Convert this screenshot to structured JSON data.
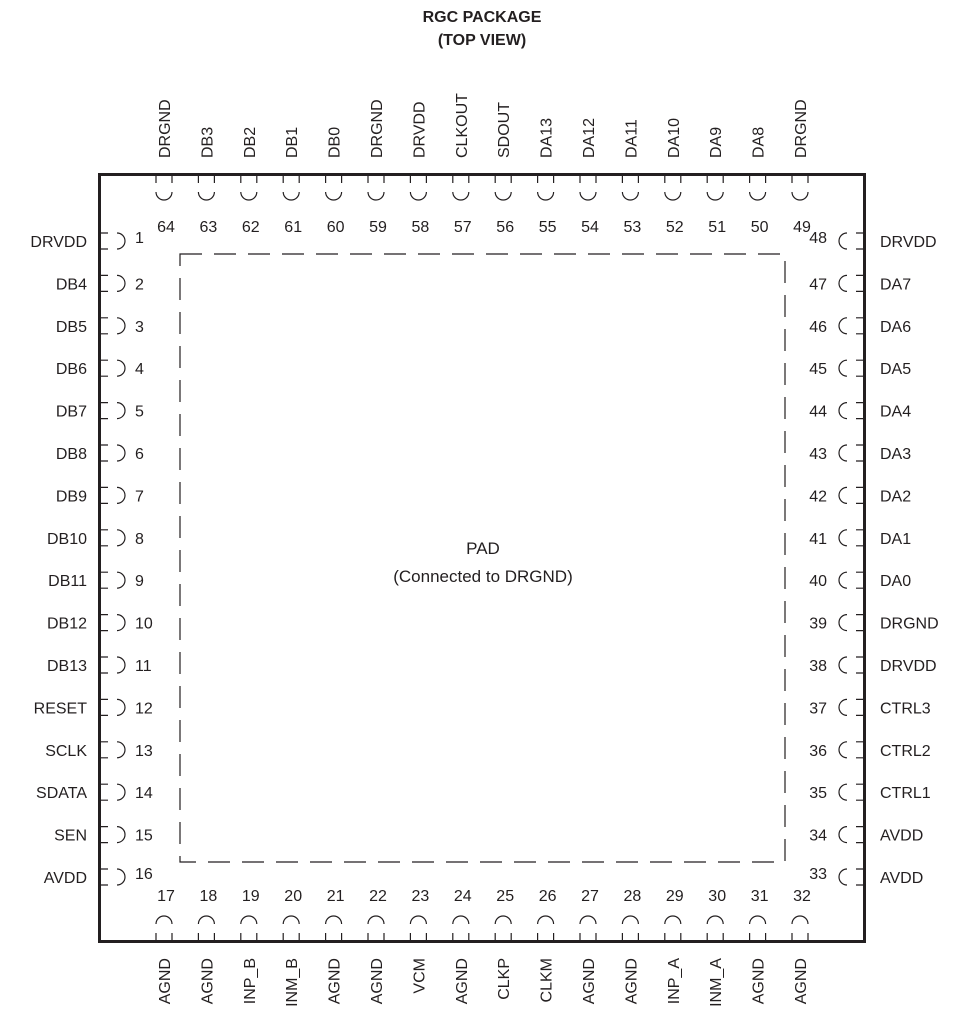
{
  "title": {
    "line1": "RGC PACKAGE",
    "line2": "(TOP VIEW)"
  },
  "pad": {
    "label": "PAD",
    "sublabel": "(Connected to DRGND)"
  },
  "pins": {
    "left": [
      {
        "num": "1",
        "name": "DRVDD"
      },
      {
        "num": "2",
        "name": "DB4"
      },
      {
        "num": "3",
        "name": "DB5"
      },
      {
        "num": "4",
        "name": "DB6"
      },
      {
        "num": "5",
        "name": "DB7"
      },
      {
        "num": "6",
        "name": "DB8"
      },
      {
        "num": "7",
        "name": "DB9"
      },
      {
        "num": "8",
        "name": "DB10"
      },
      {
        "num": "9",
        "name": "DB11"
      },
      {
        "num": "10",
        "name": "DB12"
      },
      {
        "num": "11",
        "name": "DB13"
      },
      {
        "num": "12",
        "name": "RESET"
      },
      {
        "num": "13",
        "name": "SCLK"
      },
      {
        "num": "14",
        "name": "SDATA"
      },
      {
        "num": "15",
        "name": "SEN"
      },
      {
        "num": "16",
        "name": "AVDD"
      }
    ],
    "bottom": [
      {
        "num": "17",
        "name": "AGND"
      },
      {
        "num": "18",
        "name": "AGND"
      },
      {
        "num": "19",
        "name": "INP_B"
      },
      {
        "num": "20",
        "name": "INM_B"
      },
      {
        "num": "21",
        "name": "AGND"
      },
      {
        "num": "22",
        "name": "AGND"
      },
      {
        "num": "23",
        "name": "VCM"
      },
      {
        "num": "24",
        "name": "AGND"
      },
      {
        "num": "25",
        "name": "CLKP"
      },
      {
        "num": "26",
        "name": "CLKM"
      },
      {
        "num": "27",
        "name": "AGND"
      },
      {
        "num": "28",
        "name": "AGND"
      },
      {
        "num": "29",
        "name": "INP_A"
      },
      {
        "num": "30",
        "name": "INM_A"
      },
      {
        "num": "31",
        "name": "AGND"
      },
      {
        "num": "32",
        "name": "AGND"
      }
    ],
    "right": [
      {
        "num": "33",
        "name": "AVDD"
      },
      {
        "num": "34",
        "name": "AVDD"
      },
      {
        "num": "35",
        "name": "CTRL1"
      },
      {
        "num": "36",
        "name": "CTRL2"
      },
      {
        "num": "37",
        "name": "CTRL3"
      },
      {
        "num": "38",
        "name": "DRVDD"
      },
      {
        "num": "39",
        "name": "DRGND"
      },
      {
        "num": "40",
        "name": "DA0"
      },
      {
        "num": "41",
        "name": "DA1"
      },
      {
        "num": "42",
        "name": "DA2"
      },
      {
        "num": "43",
        "name": "DA3"
      },
      {
        "num": "44",
        "name": "DA4"
      },
      {
        "num": "45",
        "name": "DA5"
      },
      {
        "num": "46",
        "name": "DA6"
      },
      {
        "num": "47",
        "name": "DA7"
      },
      {
        "num": "48",
        "name": "DRVDD"
      }
    ],
    "top": [
      {
        "num": "49",
        "name": "DRGND"
      },
      {
        "num": "50",
        "name": "DA8"
      },
      {
        "num": "51",
        "name": "DA9"
      },
      {
        "num": "52",
        "name": "DA10"
      },
      {
        "num": "53",
        "name": "DA11"
      },
      {
        "num": "54",
        "name": "DA12"
      },
      {
        "num": "55",
        "name": "DA13"
      },
      {
        "num": "56",
        "name": "SDOUT"
      },
      {
        "num": "57",
        "name": "CLKOUT"
      },
      {
        "num": "58",
        "name": "DRVDD"
      },
      {
        "num": "59",
        "name": "DRGND"
      },
      {
        "num": "60",
        "name": "DB0"
      },
      {
        "num": "61",
        "name": "DB1"
      },
      {
        "num": "62",
        "name": "DB2"
      },
      {
        "num": "63",
        "name": "DB3"
      },
      {
        "num": "64",
        "name": "DRGND"
      }
    ]
  }
}
